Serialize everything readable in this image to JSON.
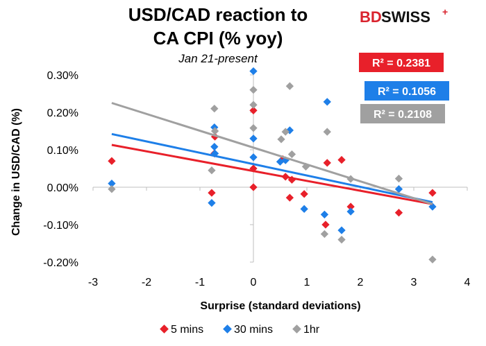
{
  "logo": {
    "part1": "BD",
    "part2": "SWISS",
    "plus": "+"
  },
  "chart_data": {
    "type": "scatter",
    "title": "USD/CAD reaction to CA CPI (% yoy)",
    "title_lines": [
      "USD/CAD reaction to",
      "CA CPI (% yoy)"
    ],
    "subtitle": "Jan 21-present",
    "xlabel": "Surprise (standard deviations)",
    "ylabel": "Change in USD/CAD (%)",
    "xlim": [
      -3,
      4
    ],
    "ylim": [
      -0.2,
      0.3
    ],
    "x_ticks": [
      -3,
      -2,
      -1,
      0,
      1,
      2,
      3,
      4
    ],
    "x_tick_labels": [
      "-3",
      "-2",
      "-1",
      "0",
      "1",
      "2",
      "3",
      "4"
    ],
    "y_ticks": [
      -0.2,
      -0.1,
      0,
      0.1,
      0.2,
      0.3
    ],
    "y_tick_labels": [
      "-0.20%",
      "-0.10%",
      "0.00%",
      "0.10%",
      "0.20%",
      "0.30%"
    ],
    "grid": false,
    "legend_position": "bottom",
    "series": [
      {
        "name": "5 mins",
        "color": "#e8202a",
        "r2_label": "R² = 0.2381",
        "trend": [
          [
            -2.65,
            0.113
          ],
          [
            3.35,
            -0.045
          ]
        ],
        "points": [
          [
            -2.65,
            0.07
          ],
          [
            -0.78,
            -0.015
          ],
          [
            -0.73,
            0.09
          ],
          [
            -0.72,
            0.135
          ],
          [
            0,
            0.05
          ],
          [
            0,
            0.205
          ],
          [
            0,
            0
          ],
          [
            0.55,
            0.075
          ],
          [
            0.6,
            0.028
          ],
          [
            0.68,
            -0.028
          ],
          [
            0.72,
            0.02
          ],
          [
            0.95,
            -0.018
          ],
          [
            1.35,
            -0.1
          ],
          [
            1.38,
            0.065
          ],
          [
            1.65,
            0.073
          ],
          [
            1.82,
            -0.052
          ],
          [
            2.72,
            -0.068
          ],
          [
            3.35,
            -0.015
          ]
        ]
      },
      {
        "name": "30 mins",
        "color": "#1e7fe8",
        "r2_label": "R² = 0.1056",
        "trend": [
          [
            -2.65,
            0.142
          ],
          [
            3.35,
            -0.04
          ]
        ],
        "points": [
          [
            -2.65,
            0.01
          ],
          [
            -0.78,
            -0.042
          ],
          [
            -0.73,
            0.108
          ],
          [
            -0.73,
            0.16
          ],
          [
            -0.72,
            0.09
          ],
          [
            0,
            0.31
          ],
          [
            0,
            0.13
          ],
          [
            0,
            0.08
          ],
          [
            0.5,
            0.068
          ],
          [
            0.6,
            0.072
          ],
          [
            0.68,
            0.152
          ],
          [
            0.95,
            -0.058
          ],
          [
            1.33,
            -0.073
          ],
          [
            1.38,
            0.228
          ],
          [
            1.65,
            -0.115
          ],
          [
            1.82,
            -0.065
          ],
          [
            2.72,
            -0.005
          ],
          [
            3.35,
            -0.052
          ]
        ]
      },
      {
        "name": "1hr",
        "color": "#a0a0a0",
        "r2_label": "R² = 0.2108",
        "trend": [
          [
            -2.65,
            0.225
          ],
          [
            3.35,
            -0.045
          ]
        ],
        "points": [
          [
            -2.65,
            -0.005
          ],
          [
            -0.78,
            0.045
          ],
          [
            -0.73,
            0.21
          ],
          [
            -0.72,
            0.15
          ],
          [
            0,
            0.26
          ],
          [
            0,
            0.22
          ],
          [
            0,
            0.158
          ],
          [
            0.52,
            0.128
          ],
          [
            0.6,
            0.148
          ],
          [
            0.68,
            0.27
          ],
          [
            0.72,
            0.088
          ],
          [
            0.98,
            0.055
          ],
          [
            1.33,
            -0.125
          ],
          [
            1.38,
            0.148
          ],
          [
            1.65,
            -0.14
          ],
          [
            1.82,
            0.022
          ],
          [
            2.72,
            0.023
          ],
          [
            3.35,
            -0.193
          ]
        ]
      }
    ]
  }
}
